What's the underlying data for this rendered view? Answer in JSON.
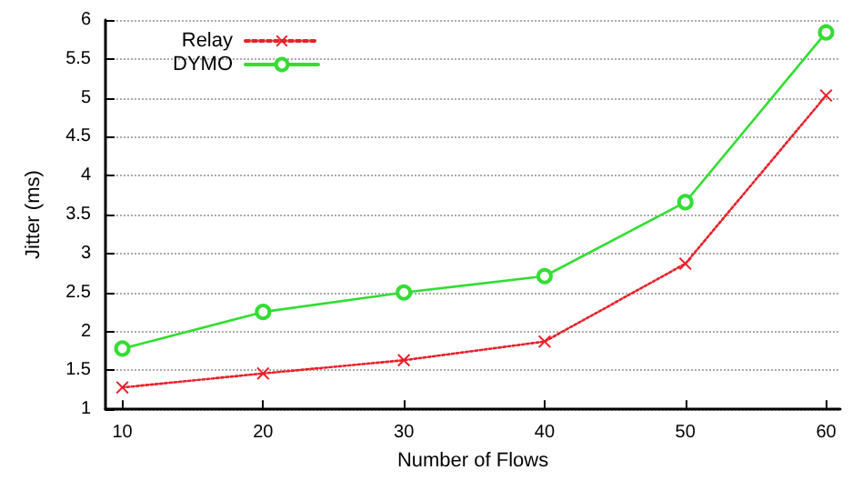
{
  "chart_data": {
    "type": "line",
    "xlabel": "Number of Flows",
    "ylabel": "Jitter (ms)",
    "x": [
      10,
      20,
      30,
      40,
      50,
      60
    ],
    "series": [
      {
        "name": "Relay",
        "color": "#e8202a",
        "values": [
          1.28,
          1.46,
          1.63,
          1.87,
          2.87,
          5.03
        ],
        "marker": "cross",
        "line_style": "dotted"
      },
      {
        "name": "DYMO",
        "color": "#33dd33",
        "values": [
          1.78,
          2.25,
          2.5,
          2.71,
          3.66,
          5.84
        ],
        "marker": "circle",
        "line_style": "solid"
      }
    ],
    "xlim": [
      8.8,
      61
    ],
    "xticks": [
      10,
      20,
      30,
      40,
      50,
      60
    ],
    "ylim": [
      1,
      6
    ],
    "yticks": [
      1,
      1.5,
      2,
      2.5,
      3,
      3.5,
      4,
      4.5,
      5,
      5.5,
      6
    ],
    "grid": "y",
    "legend": "top left"
  }
}
